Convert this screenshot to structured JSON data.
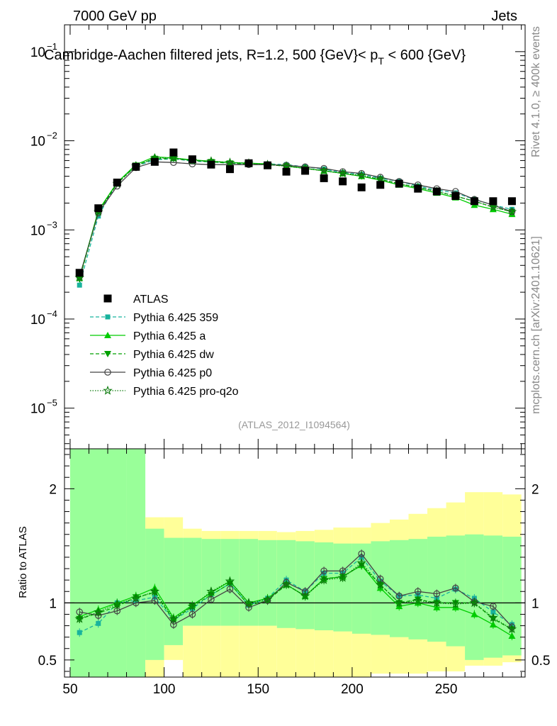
{
  "header": {
    "left": "7000 GeV pp",
    "right": "Jets"
  },
  "side_labels": {
    "rivet": "Rivet 4.1.0, ≥ 400k events",
    "mcplots": "mcplots.cern.ch [arXiv:2401.10621]"
  },
  "chart_data": [
    {
      "type": "scatter",
      "panel": "main",
      "title_parts": {
        "pre": "Cambridge-Aachen filtered jets, R=1.2, 500 {GeV}< p",
        "sub": "T",
        "post": " < 600 {GeV}"
      },
      "yscale": "log",
      "ylim": [
        3.5e-06,
        0.2
      ],
      "xlim": [
        47,
        292
      ],
      "y_ticks": [
        {
          "value": 1e-05,
          "base": "10",
          "exp": "−5"
        },
        {
          "value": 0.0001,
          "base": "10",
          "exp": "−4"
        },
        {
          "value": 0.001,
          "base": "10",
          "exp": "−3"
        },
        {
          "value": 0.01,
          "base": "10",
          "exp": "−2"
        },
        {
          "value": 0.1,
          "base": "10",
          "exp": "−1"
        }
      ],
      "analysis_label": "(ATLAS_2012_I1094564)",
      "legend_position": "middle-left",
      "x": [
        55,
        65,
        75,
        85,
        95,
        105,
        115,
        125,
        135,
        145,
        155,
        165,
        175,
        185,
        195,
        205,
        215,
        225,
        235,
        245,
        255,
        265,
        275,
        285
      ],
      "series": [
        {
          "name": "ATLAS",
          "color": "#000000",
          "marker": "square",
          "line": "none",
          "values": [
            0.00033,
            0.00175,
            0.0034,
            0.0051,
            0.0058,
            0.0074,
            0.0062,
            0.0054,
            0.0048,
            0.0056,
            0.0053,
            0.0045,
            0.0046,
            0.0038,
            0.0035,
            0.003,
            0.0032,
            0.0033,
            0.0029,
            0.0027,
            0.0024,
            0.0021,
            0.0021,
            0.0021
          ]
        },
        {
          "name": "Pythia 6.425 359",
          "color": "#19b39d",
          "marker": "small-square",
          "line": "dashed",
          "values": [
            0.00024,
            0.00143,
            0.0034,
            0.0052,
            0.0061,
            0.0063,
            0.0059,
            0.0058,
            0.0056,
            0.0055,
            0.0055,
            0.0054,
            0.0051,
            0.0048,
            0.0044,
            0.0042,
            0.0038,
            0.0035,
            0.0031,
            0.0028,
            0.0026,
            0.0022,
            0.0019,
            0.0017
          ]
        },
        {
          "name": "Pythia 6.425 a",
          "color": "#00cc00",
          "marker": "triangle-up",
          "line": "solid",
          "values": [
            0.00029,
            0.00165,
            0.0034,
            0.0054,
            0.0066,
            0.0064,
            0.0061,
            0.0059,
            0.0057,
            0.0056,
            0.0055,
            0.0052,
            0.0049,
            0.0046,
            0.0043,
            0.004,
            0.0036,
            0.0032,
            0.0029,
            0.0026,
            0.0023,
            0.0019,
            0.0017,
            0.0015
          ]
        },
        {
          "name": "Pythia 6.425 dw",
          "color": "#00a000",
          "marker": "triangle-down",
          "line": "dashed",
          "values": [
            0.00028,
            0.0016,
            0.0033,
            0.0053,
            0.0063,
            0.0063,
            0.006,
            0.0058,
            0.0056,
            0.0055,
            0.0054,
            0.0052,
            0.0049,
            0.0046,
            0.0043,
            0.004,
            0.0037,
            0.0033,
            0.003,
            0.0027,
            0.0024,
            0.0021,
            0.0018,
            0.0016
          ]
        },
        {
          "name": "Pythia 6.425 p0",
          "color": "#444444",
          "marker": "open-circle",
          "line": "solid",
          "values": [
            0.0003,
            0.00155,
            0.0031,
            0.005,
            0.0058,
            0.0057,
            0.0055,
            0.0054,
            0.0054,
            0.0054,
            0.0054,
            0.0053,
            0.0051,
            0.0049,
            0.0045,
            0.0043,
            0.0039,
            0.0035,
            0.0032,
            0.0029,
            0.0027,
            0.0022,
            0.0019,
            0.0016
          ]
        },
        {
          "name": "Pythia 6.425 pro-q2o",
          "color": "#0a7a0a",
          "marker": "open-star",
          "line": "dotted",
          "values": [
            0.00029,
            0.0016,
            0.0033,
            0.0052,
            0.0064,
            0.0064,
            0.006,
            0.0059,
            0.0057,
            0.0056,
            0.0054,
            0.0052,
            0.0049,
            0.0046,
            0.0043,
            0.0041,
            0.0037,
            0.0033,
            0.003,
            0.0027,
            0.0024,
            0.0021,
            0.0018,
            0.0016
          ]
        }
      ]
    },
    {
      "type": "scatter",
      "panel": "ratio",
      "ylabel": "Ratio to ATLAS",
      "ylim": [
        0.35,
        2.35
      ],
      "xlim": [
        47,
        292
      ],
      "x_ticks": [
        50,
        100,
        150,
        200,
        250
      ],
      "y_ticks": [
        {
          "value": 0.5,
          "label": "0.5"
        },
        {
          "value": 1,
          "label": "1"
        },
        {
          "value": 2,
          "label": "2"
        }
      ],
      "uncertainty_bands": {
        "bin_edges": [
          50,
          60,
          70,
          80,
          90,
          100,
          110,
          120,
          130,
          140,
          150,
          160,
          170,
          180,
          190,
          200,
          210,
          220,
          230,
          240,
          250,
          260,
          270,
          280,
          290
        ],
        "stat_color": "#99ff99",
        "total_color": "#ffff99",
        "stat_down": [
          0.2,
          0.2,
          0.2,
          0.2,
          0.5,
          0.63,
          0.8,
          0.8,
          0.8,
          0.8,
          0.8,
          0.78,
          0.77,
          0.76,
          0.75,
          0.73,
          0.72,
          0.7,
          0.68,
          0.66,
          0.62,
          0.5,
          0.52,
          0.54
        ],
        "stat_up": [
          2.4,
          2.4,
          2.4,
          2.4,
          1.65,
          1.57,
          1.57,
          1.56,
          1.56,
          1.56,
          1.55,
          1.55,
          1.54,
          1.53,
          1.52,
          1.52,
          1.54,
          1.55,
          1.56,
          1.58,
          1.59,
          1.6,
          1.59,
          1.58
        ],
        "total_down": [
          0.2,
          0.2,
          0.2,
          0.2,
          0.2,
          0.5,
          0.35,
          0.35,
          0.35,
          0.35,
          0.35,
          0.35,
          0.33,
          0.35,
          0.35,
          0.35,
          0.38,
          0.38,
          0.38,
          0.4,
          0.4,
          0.45,
          0.45,
          0.48
        ],
        "total_up": [
          2.4,
          2.4,
          2.4,
          1.9,
          1.75,
          1.75,
          1.65,
          1.63,
          1.63,
          1.63,
          1.63,
          1.62,
          1.63,
          1.64,
          1.66,
          1.66,
          1.7,
          1.73,
          1.78,
          1.83,
          1.88,
          1.97,
          1.97,
          1.95
        ]
      },
      "x": [
        55,
        65,
        75,
        85,
        95,
        105,
        115,
        125,
        135,
        145,
        155,
        165,
        175,
        185,
        195,
        205,
        215,
        225,
        235,
        245,
        255,
        265,
        275,
        285
      ],
      "series": [
        {
          "name": "Pythia 6.425 359",
          "values": [
            0.74,
            0.82,
            1.0,
            1.02,
            1.05,
            0.85,
            0.95,
            1.07,
            1.17,
            0.98,
            1.04,
            1.2,
            1.1,
            1.26,
            1.26,
            1.4,
            1.19,
            1.06,
            1.07,
            1.04,
            1.12,
            1.04,
            0.92,
            0.81
          ]
        },
        {
          "name": "Pythia 6.425 a",
          "values": [
            0.88,
            0.94,
            1.0,
            1.06,
            1.13,
            0.87,
            0.98,
            1.09,
            1.19,
            1.0,
            1.04,
            1.16,
            1.06,
            1.21,
            1.23,
            1.33,
            1.13,
            0.97,
            1.0,
            0.96,
            0.96,
            0.9,
            0.81,
            0.71
          ]
        },
        {
          "name": "Pythia 6.425 dw",
          "values": [
            0.86,
            0.91,
            0.97,
            1.05,
            1.09,
            0.85,
            0.97,
            1.07,
            1.17,
            0.98,
            1.02,
            1.16,
            1.06,
            1.21,
            1.23,
            1.33,
            1.16,
            1.0,
            1.03,
            1.0,
            1.0,
            1.0,
            0.86,
            0.77
          ]
        },
        {
          "name": "Pythia 6.425 p0",
          "values": [
            0.92,
            0.89,
            0.93,
            1.0,
            1.02,
            0.81,
            0.9,
            1.03,
            1.12,
            0.96,
            1.02,
            1.18,
            1.1,
            1.28,
            1.28,
            1.43,
            1.21,
            1.06,
            1.1,
            1.08,
            1.13,
            1.01,
            0.97,
            0.79
          ]
        },
        {
          "name": "Pythia 6.425 pro-q2o",
          "values": [
            0.86,
            0.92,
            0.99,
            1.04,
            1.1,
            0.86,
            0.97,
            1.1,
            1.19,
            1.0,
            1.03,
            1.16,
            1.06,
            1.2,
            1.22,
            1.35,
            1.16,
            1.0,
            1.02,
            1.0,
            0.99,
            1.0,
            0.87,
            0.77
          ]
        }
      ]
    }
  ]
}
